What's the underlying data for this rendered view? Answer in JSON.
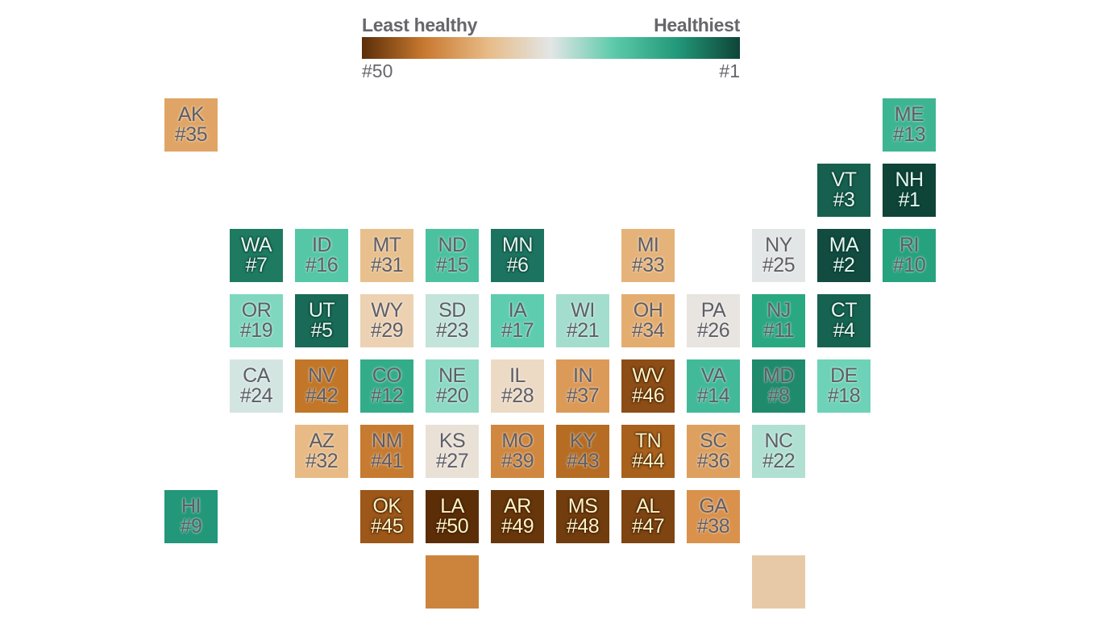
{
  "legend": {
    "left_label": "Least healthy",
    "right_label": "Healthiest",
    "left_rank": "#50",
    "right_rank": "#1",
    "gradient_stops": [
      "#5c2e08",
      "#c97a30",
      "#e7bb87",
      "#e3e6e6",
      "#5ccaaa",
      "#22997a",
      "#0f4438"
    ]
  },
  "chart_data": {
    "type": "heatmap",
    "title": "",
    "subtitle": "",
    "description": "US state tile grid map ranked from healthiest (#1) to least healthy (#50)",
    "legend": {
      "left": "Least healthy",
      "right": "Healthiest",
      "min_label": "#50",
      "max_label": "#1"
    },
    "tiles": [
      {
        "state": "AK",
        "rank": 35,
        "col": 0,
        "row": 0,
        "color": "#e0a566",
        "text": "gray"
      },
      {
        "state": "ME",
        "rank": 13,
        "col": 11,
        "row": 0,
        "color": "#3db592",
        "text": "gray"
      },
      {
        "state": "VT",
        "rank": 3,
        "col": 10,
        "row": 1,
        "color": "#17604f",
        "text": "dark"
      },
      {
        "state": "NH",
        "rank": 1,
        "col": 11,
        "row": 1,
        "color": "#0f4438",
        "text": "dark"
      },
      {
        "state": "WA",
        "rank": 7,
        "col": 1,
        "row": 2,
        "color": "#1e7b62",
        "text": "dark"
      },
      {
        "state": "ID",
        "rank": 16,
        "col": 2,
        "row": 2,
        "color": "#55c7a6",
        "text": "gray"
      },
      {
        "state": "MT",
        "rank": 31,
        "col": 3,
        "row": 2,
        "color": "#e8c08e",
        "text": "gray"
      },
      {
        "state": "ND",
        "rank": 15,
        "col": 4,
        "row": 2,
        "color": "#4bc1a0",
        "text": "gray"
      },
      {
        "state": "MN",
        "rank": 6,
        "col": 5,
        "row": 2,
        "color": "#1c7460",
        "text": "dark"
      },
      {
        "state": "MI",
        "rank": 33,
        "col": 7,
        "row": 2,
        "color": "#e5b37a",
        "text": "gray"
      },
      {
        "state": "NY",
        "rank": 25,
        "col": 9,
        "row": 2,
        "color": "#e3e6e6",
        "text": "gray"
      },
      {
        "state": "MA",
        "rank": 2,
        "col": 10,
        "row": 2,
        "color": "#124c40",
        "text": "dark"
      },
      {
        "state": "RI",
        "rank": 10,
        "col": 11,
        "row": 2,
        "color": "#27a27f",
        "text": "gray"
      },
      {
        "state": "OR",
        "rank": 19,
        "col": 1,
        "row": 3,
        "color": "#80d7bf",
        "text": "gray"
      },
      {
        "state": "UT",
        "rank": 5,
        "col": 2,
        "row": 3,
        "color": "#196a57",
        "text": "dark"
      },
      {
        "state": "WY",
        "rank": 29,
        "col": 3,
        "row": 3,
        "color": "#ecd2b3",
        "text": "gray"
      },
      {
        "state": "SD",
        "rank": 23,
        "col": 4,
        "row": 3,
        "color": "#c2e4da",
        "text": "gray"
      },
      {
        "state": "IA",
        "rank": 17,
        "col": 5,
        "row": 3,
        "color": "#5ecdaf",
        "text": "gray"
      },
      {
        "state": "WI",
        "rank": 21,
        "col": 6,
        "row": 3,
        "color": "#a3ddcd",
        "text": "gray"
      },
      {
        "state": "OH",
        "rank": 34,
        "col": 7,
        "row": 3,
        "color": "#e4ad70",
        "text": "gray"
      },
      {
        "state": "PA",
        "rank": 26,
        "col": 8,
        "row": 3,
        "color": "#e8e4e0",
        "text": "gray"
      },
      {
        "state": "NJ",
        "rank": 11,
        "col": 9,
        "row": 3,
        "color": "#2aa882",
        "text": "gray"
      },
      {
        "state": "CT",
        "rank": 4,
        "col": 10,
        "row": 3,
        "color": "#176352",
        "text": "dark"
      },
      {
        "state": "CA",
        "rank": 24,
        "col": 1,
        "row": 4,
        "color": "#d3e5e1",
        "text": "gray"
      },
      {
        "state": "NV",
        "rank": 42,
        "col": 2,
        "row": 4,
        "color": "#c17628",
        "text": "gray"
      },
      {
        "state": "CO",
        "rank": 12,
        "col": 3,
        "row": 4,
        "color": "#33ad89",
        "text": "gray"
      },
      {
        "state": "NE",
        "rank": 20,
        "col": 4,
        "row": 4,
        "color": "#8cdac4",
        "text": "gray"
      },
      {
        "state": "IL",
        "rank": 28,
        "col": 5,
        "row": 4,
        "color": "#ecdac5",
        "text": "gray"
      },
      {
        "state": "IN",
        "rank": 37,
        "col": 6,
        "row": 4,
        "color": "#dc9a58",
        "text": "gray"
      },
      {
        "state": "WV",
        "rank": 46,
        "col": 7,
        "row": 4,
        "color": "#8d4d16",
        "text": "brown"
      },
      {
        "state": "VA",
        "rank": 14,
        "col": 8,
        "row": 4,
        "color": "#42b999",
        "text": "gray"
      },
      {
        "state": "MD",
        "rank": 8,
        "col": 9,
        "row": 4,
        "color": "#1f8a6c",
        "text": "gray"
      },
      {
        "state": "DE",
        "rank": 18,
        "col": 10,
        "row": 4,
        "color": "#6dd2b7",
        "text": "gray"
      },
      {
        "state": "AZ",
        "rank": 32,
        "col": 2,
        "row": 5,
        "color": "#e8bb86",
        "text": "gray"
      },
      {
        "state": "NM",
        "rank": 41,
        "col": 3,
        "row": 5,
        "color": "#c67b30",
        "text": "gray"
      },
      {
        "state": "KS",
        "rank": 27,
        "col": 4,
        "row": 5,
        "color": "#e9e0d6",
        "text": "gray"
      },
      {
        "state": "MO",
        "rank": 39,
        "col": 5,
        "row": 5,
        "color": "#d0873f",
        "text": "gray"
      },
      {
        "state": "KY",
        "rank": 43,
        "col": 6,
        "row": 5,
        "color": "#b66c22",
        "text": "gray"
      },
      {
        "state": "TN",
        "rank": 44,
        "col": 7,
        "row": 5,
        "color": "#a8601d",
        "text": "brown"
      },
      {
        "state": "SC",
        "rank": 36,
        "col": 8,
        "row": 5,
        "color": "#dea05f",
        "text": "gray"
      },
      {
        "state": "NC",
        "rank": 22,
        "col": 9,
        "row": 5,
        "color": "#b0e0d2",
        "text": "gray"
      },
      {
        "state": "HI",
        "rank": 9,
        "col": 0,
        "row": 6,
        "color": "#22977a",
        "text": "gray"
      },
      {
        "state": "OK",
        "rank": 45,
        "col": 3,
        "row": 6,
        "color": "#9c5719",
        "text": "brown"
      },
      {
        "state": "LA",
        "rank": 50,
        "col": 4,
        "row": 6,
        "color": "#5c2e08",
        "text": "brown"
      },
      {
        "state": "AR",
        "rank": 49,
        "col": 5,
        "row": 6,
        "color": "#67360b",
        "text": "brown"
      },
      {
        "state": "MS",
        "rank": 48,
        "col": 6,
        "row": 6,
        "color": "#713c0e",
        "text": "brown"
      },
      {
        "state": "AL",
        "rank": 47,
        "col": 7,
        "row": 6,
        "color": "#7e4412",
        "text": "brown"
      },
      {
        "state": "GA",
        "rank": 38,
        "col": 8,
        "row": 6,
        "color": "#d9914c",
        "text": "gray"
      },
      {
        "state": "",
        "rank": null,
        "col": 4,
        "row": 7,
        "color": "#cc843c",
        "text": "none"
      },
      {
        "state": "",
        "rank": null,
        "col": 9,
        "row": 7,
        "color": "#e8c9a7",
        "text": "none"
      }
    ]
  }
}
